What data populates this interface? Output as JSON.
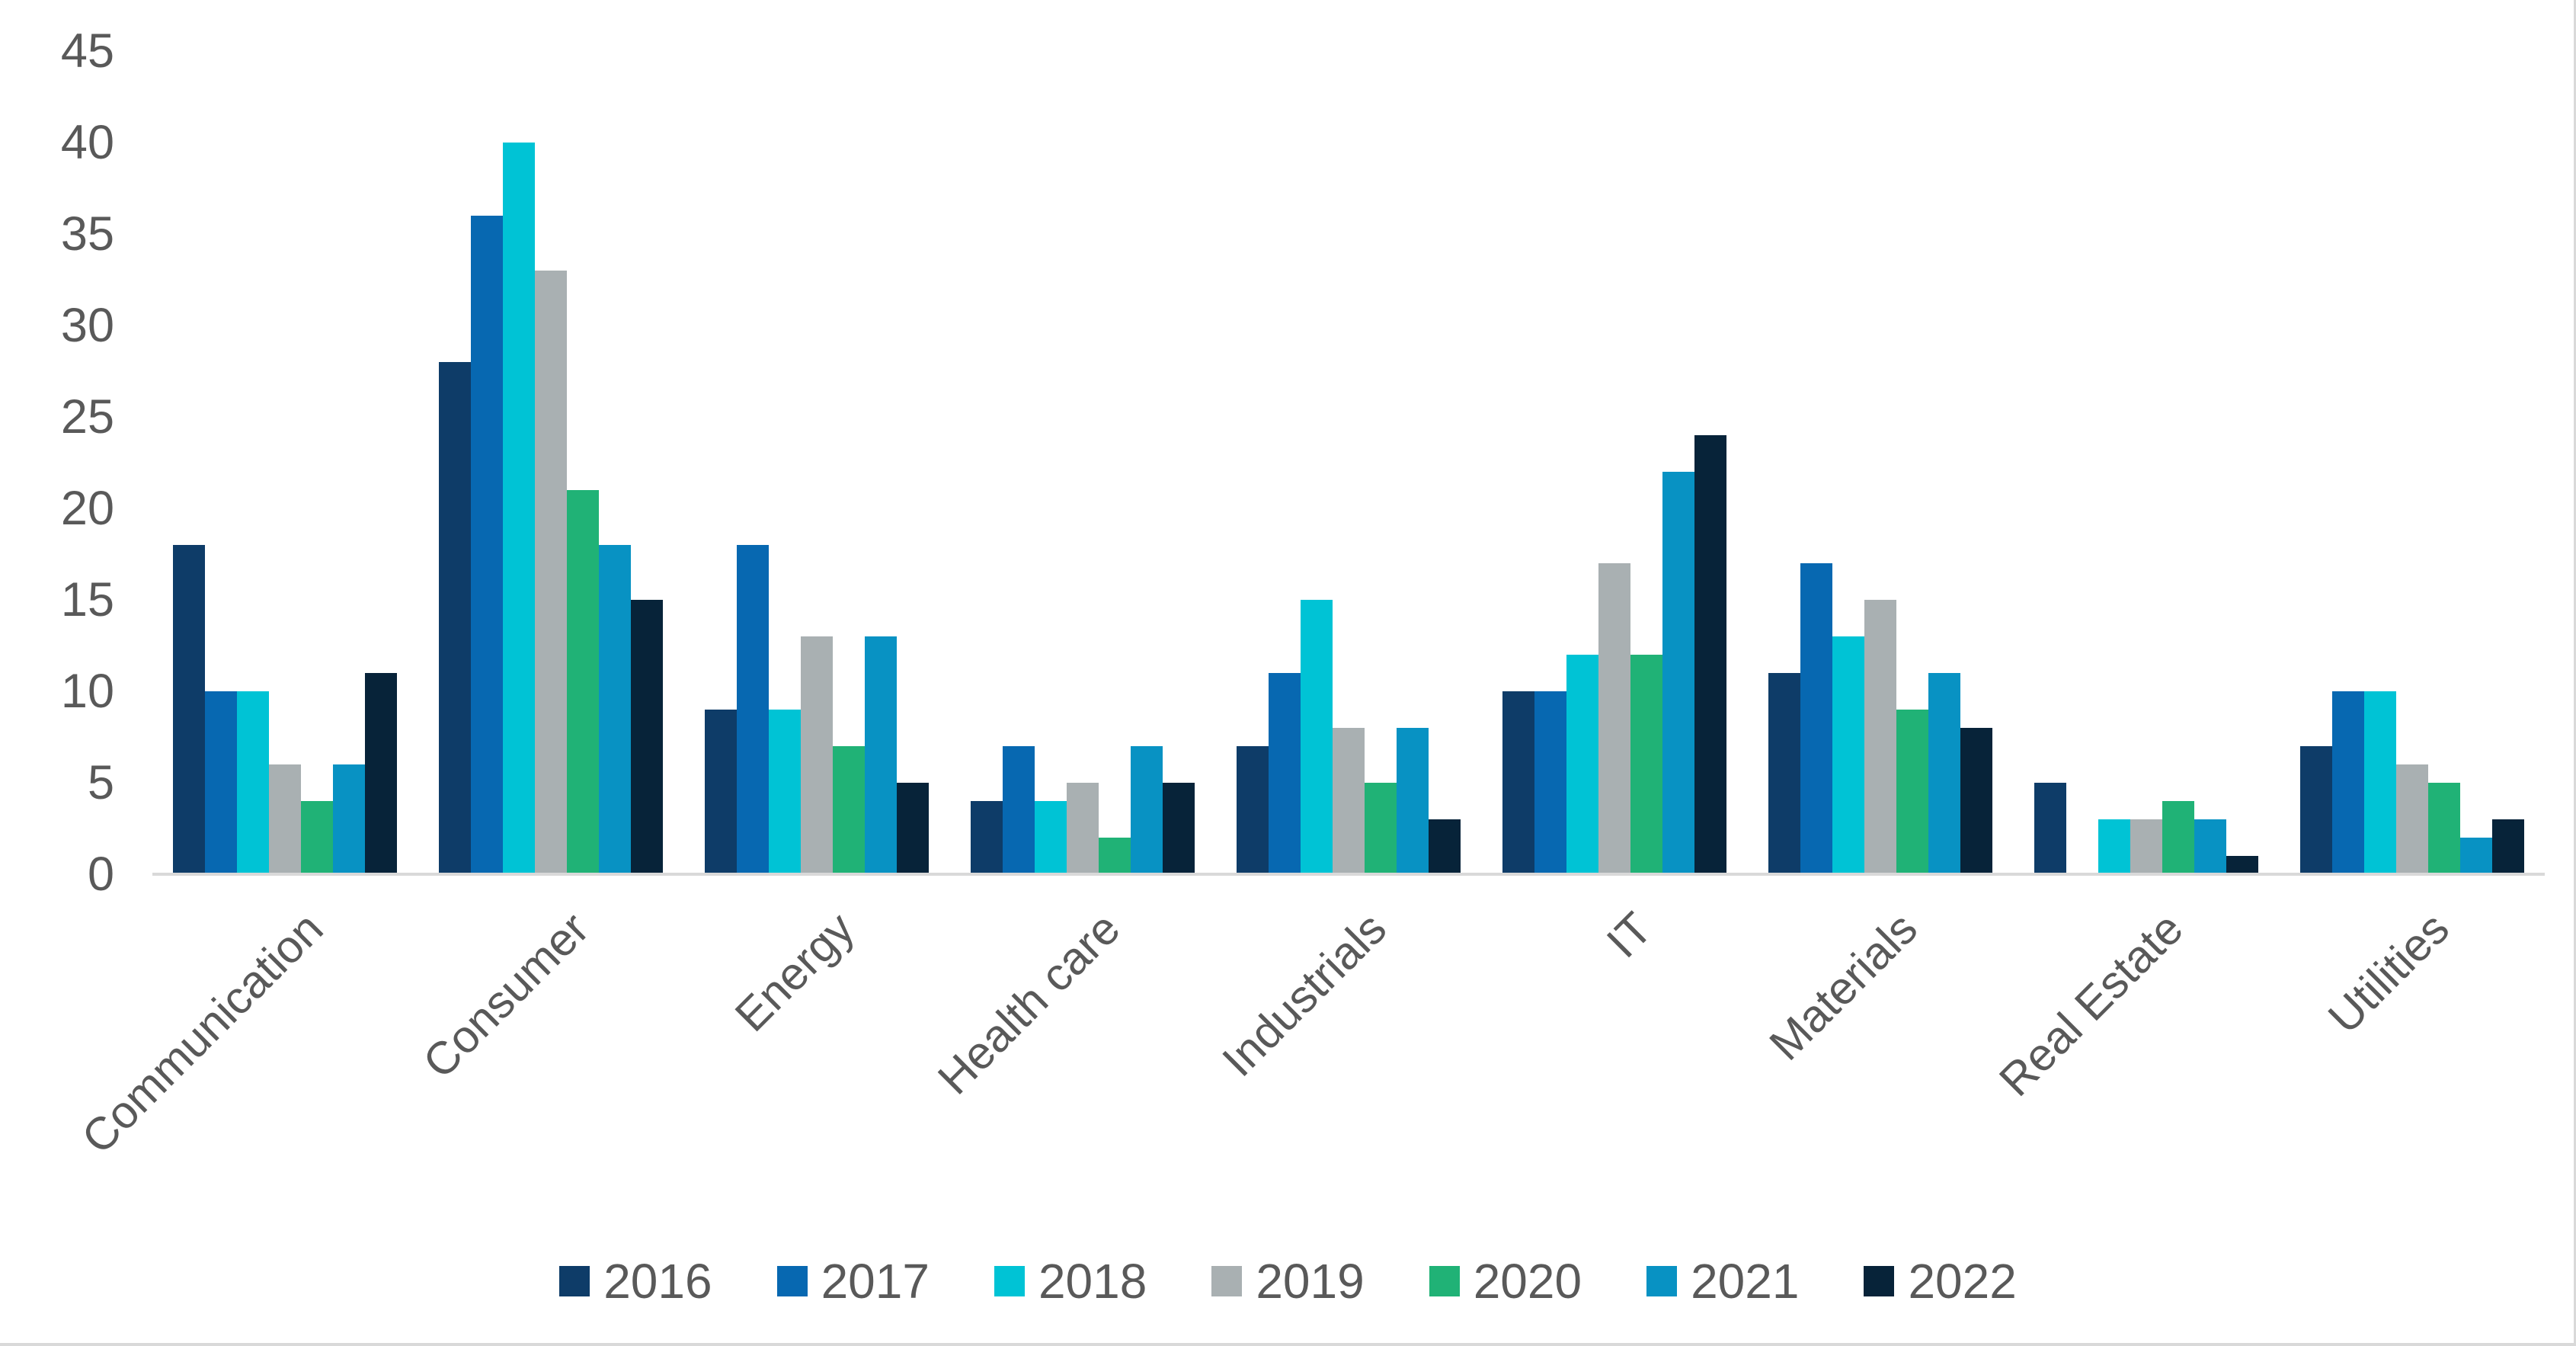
{
  "styles": {
    "background": "#ffffff",
    "axis_line_color": "#d9d9d9",
    "label_color": "#595959"
  },
  "chart_data": {
    "type": "bar",
    "title": "",
    "xlabel": "",
    "ylabel": "",
    "grid": false,
    "categories": [
      "Communication",
      "Consumer",
      "Energy",
      "Health care",
      "Industrials",
      "IT",
      "Materials",
      "Real Estate",
      "Utilities"
    ],
    "series": [
      {
        "name": "2016",
        "color": "#0e3c68",
        "values": [
          18,
          28,
          9,
          4,
          7,
          10,
          11,
          5,
          7
        ]
      },
      {
        "name": "2017",
        "color": "#0768b1",
        "values": [
          10,
          36,
          18,
          7,
          11,
          10,
          17,
          0,
          10
        ]
      },
      {
        "name": "2018",
        "color": "#00c3d5",
        "values": [
          10,
          40,
          9,
          4,
          15,
          12,
          13,
          3,
          10
        ]
      },
      {
        "name": "2019",
        "color": "#a9b0b2",
        "values": [
          6,
          33,
          13,
          5,
          8,
          17,
          15,
          3,
          6
        ]
      },
      {
        "name": "2020",
        "color": "#20b276",
        "values": [
          4,
          21,
          7,
          2,
          5,
          12,
          9,
          4,
          5
        ]
      },
      {
        "name": "2021",
        "color": "#0892c3",
        "values": [
          6,
          18,
          13,
          7,
          8,
          22,
          11,
          3,
          2
        ]
      },
      {
        "name": "2022",
        "color": "#072339",
        "values": [
          11,
          15,
          5,
          5,
          3,
          24,
          8,
          1,
          3
        ]
      }
    ],
    "y_axis": {
      "min": 0,
      "max": 45,
      "tick_step": 5,
      "ticks": [
        0,
        5,
        10,
        15,
        20,
        25,
        30,
        35,
        40,
        45
      ]
    },
    "legend": {
      "position": "bottom",
      "labels": [
        "2016",
        "2017",
        "2018",
        "2019",
        "2020",
        "2021",
        "2022"
      ]
    }
  }
}
